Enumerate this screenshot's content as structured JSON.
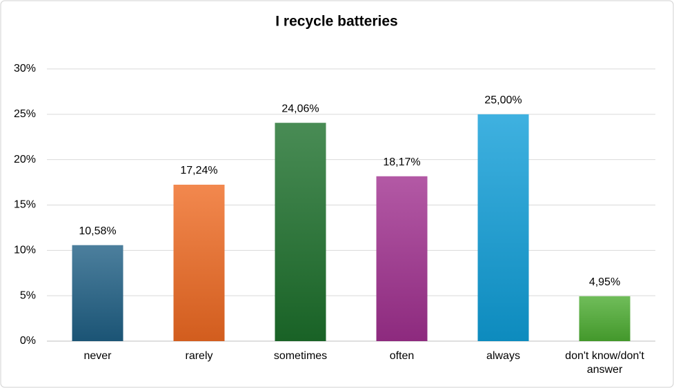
{
  "chart_data": {
    "type": "bar",
    "title": "I recycle batteries",
    "categories": [
      "never",
      "rarely",
      "sometimes",
      "often",
      "always",
      "don't know/don't answer"
    ],
    "values": [
      10.58,
      17.24,
      24.06,
      18.17,
      25.0,
      4.95
    ],
    "value_labels": [
      "10,58%",
      "17,24%",
      "24,06%",
      "18,17%",
      "25,00%",
      "4,95%"
    ],
    "colors": [
      "#1f5f85",
      "#ef6a22",
      "#1c6f2b",
      "#a0308f",
      "#0f9ed8",
      "#4cad31"
    ],
    "ylim": [
      0,
      30
    ],
    "yticks": [
      {
        "value": 0,
        "label": "0%"
      },
      {
        "value": 5,
        "label": "5%"
      },
      {
        "value": 10,
        "label": "10%"
      },
      {
        "value": 15,
        "label": "15%"
      },
      {
        "value": 20,
        "label": "20%"
      },
      {
        "value": 25,
        "label": "25%"
      },
      {
        "value": 30,
        "label": "30%"
      }
    ],
    "grid": true
  }
}
